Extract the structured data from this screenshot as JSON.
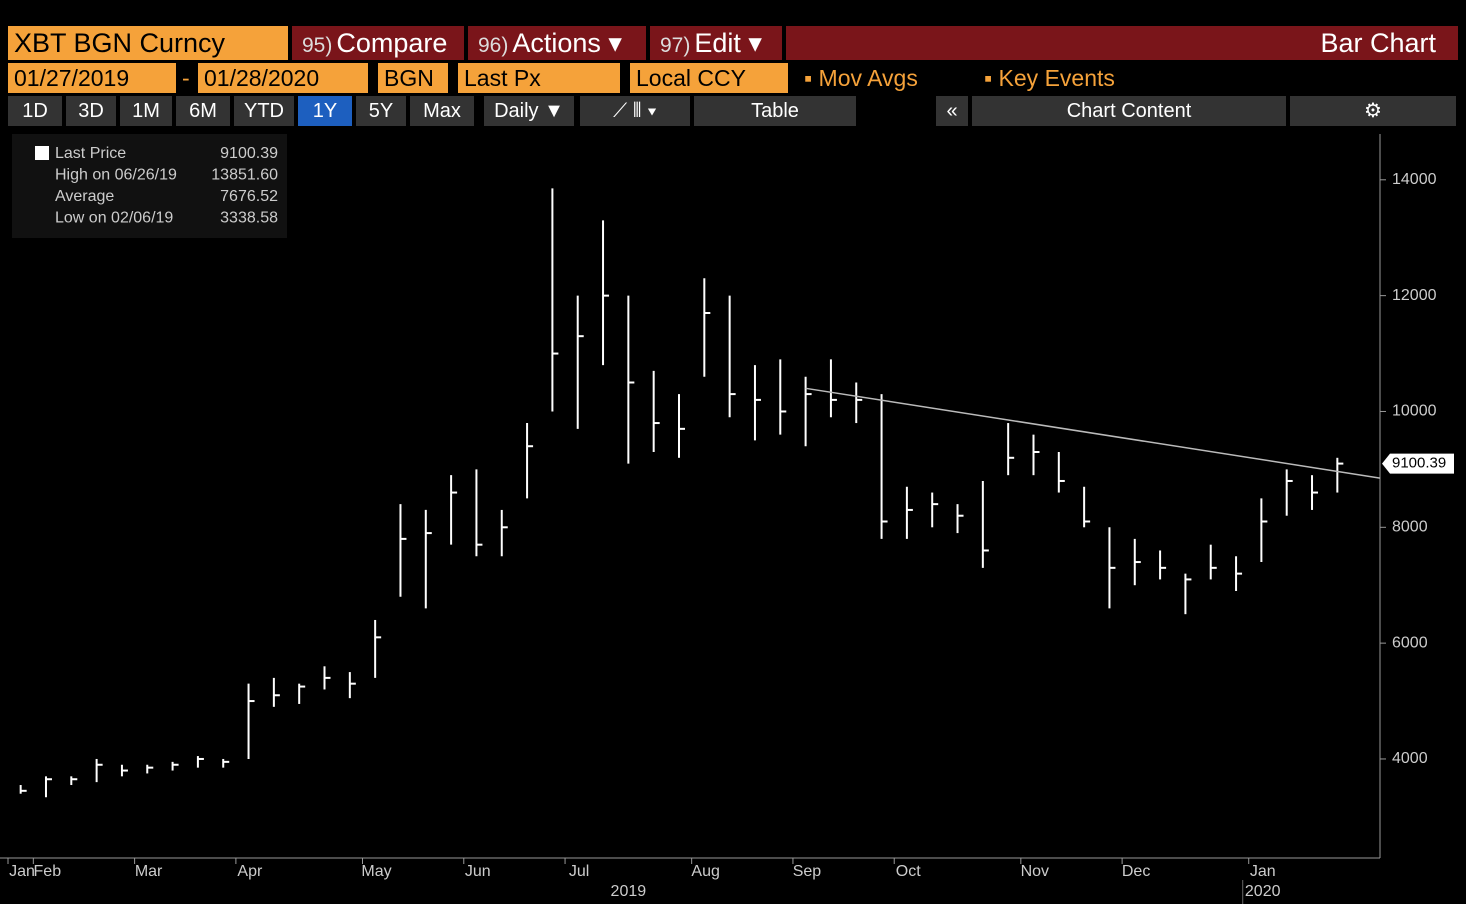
{
  "toolbar": {
    "ticker": "XBT BGN Curncy",
    "menus": [
      {
        "num": "95)",
        "label": "Compare"
      },
      {
        "num": "96)",
        "label": "Actions"
      },
      {
        "num": "97)",
        "label": "Edit"
      }
    ],
    "view": "Bar Chart",
    "start_date": "01/27/2019",
    "dash": "-",
    "end_date": "01/28/2020",
    "source": "BGN",
    "field": "Last Px",
    "currency": "Local CCY",
    "mov_avgs": "Mov Avgs",
    "key_events": "Key Events",
    "periods": [
      "1D",
      "3D",
      "1M",
      "6M",
      "YTD",
      "1Y",
      "5Y",
      "Max"
    ],
    "frequency": "Daily ▼",
    "table": "Table",
    "chart_content": "Chart Content"
  },
  "chart_data": {
    "type": "ohlc",
    "color": "#ffffff",
    "legend_items": [
      {
        "label": "Last Price",
        "value": 9100.39
      },
      {
        "label": "High on 06/26/19",
        "value": {
          "value": 13851.6,
          "label": "13851.60"
        }
      },
      {
        "label": "Average",
        "value": 7676.52
      },
      {
        "label": "Low on 02/06/19",
        "value": 3338.58
      }
    ],
    "last_price": 9100.39,
    "categories": [
      "Jan",
      "Feb",
      null,
      null,
      null,
      "Mar",
      null,
      null,
      null,
      "Apr",
      null,
      null,
      null,
      null,
      "May",
      null,
      null,
      null,
      "Jun",
      null,
      null,
      null,
      "Jul",
      null,
      null,
      null,
      null,
      "Aug",
      null,
      null,
      null,
      "Sep",
      null,
      null,
      null,
      "Oct",
      null,
      null,
      null,
      null,
      "Nov",
      null,
      null,
      null,
      "Dec",
      null,
      null,
      null,
      null,
      "Jan",
      null,
      null,
      null
    ],
    "year_labels": [
      "2019",
      "2020"
    ],
    "high": [
      3550,
      3700,
      3700,
      4000,
      3900,
      3900,
      3950,
      4050,
      4000,
      5300,
      5400,
      5300,
      5600,
      5500,
      6400,
      8400,
      8300,
      8900,
      9000,
      8300,
      9800,
      13852,
      12000,
      13300,
      12000,
      10700,
      10300,
      12300,
      12000,
      10800,
      10900,
      10600,
      10900,
      10500,
      10300,
      8700,
      8600,
      8400,
      8800,
      9800,
      9600,
      9300,
      8700,
      8000,
      7800,
      7600,
      7200,
      7700,
      7500,
      8500,
      9000,
      8900,
      9200
    ],
    "low": [
      3400,
      3339,
      3550,
      3600,
      3700,
      3750,
      3800,
      3850,
      3850,
      4000,
      4900,
      4950,
      5200,
      5050,
      5400,
      6800,
      6600,
      7700,
      7500,
      7500,
      8500,
      10000,
      9700,
      10800,
      9100,
      9300,
      9200,
      10600,
      9900,
      9500,
      9600,
      9400,
      9900,
      9800,
      7800,
      7800,
      8000,
      7900,
      7300,
      8900,
      8900,
      8600,
      8000,
      6600,
      7000,
      7100,
      6500,
      7100,
      6900,
      7400,
      8200,
      8300,
      8600
    ],
    "close": [
      3450,
      3650,
      3650,
      3900,
      3800,
      3850,
      3900,
      4000,
      3950,
      5000,
      5100,
      5250,
      5400,
      5300,
      6100,
      7800,
      7900,
      8600,
      7700,
      8000,
      9400,
      11000,
      11300,
      12000,
      10500,
      9800,
      9700,
      11700,
      10300,
      10200,
      10000,
      10300,
      10200,
      10200,
      8100,
      8300,
      8400,
      8200,
      7600,
      9200,
      9300,
      8800,
      8100,
      7300,
      7400,
      7300,
      7100,
      7300,
      7200,
      8100,
      8800,
      8600,
      9100
    ],
    "trendline": {
      "start": 10400,
      "end": 8850
    },
    "ylim": [
      2290,
      14860
    ],
    "yticks": [
      4000,
      6000,
      8000,
      10000,
      12000,
      14000
    ]
  }
}
